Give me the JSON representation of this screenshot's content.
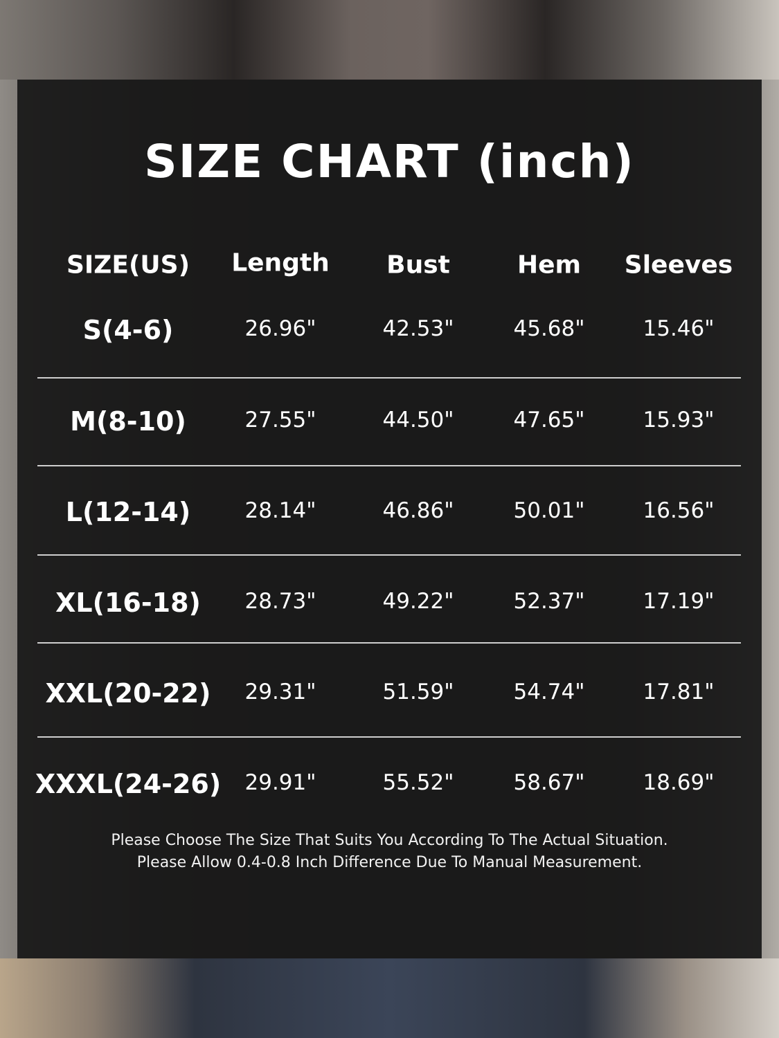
{
  "title": "SIZE CHART (inch)",
  "table": {
    "headers": [
      "SIZE(US)",
      "Length",
      "Bust",
      "Hem",
      "Sleeves"
    ],
    "rows": [
      [
        "S(4-6)",
        "26.96\"",
        "42.53\"",
        "45.68\"",
        "15.46\""
      ],
      [
        "M(8-10)",
        "27.55\"",
        "44.50\"",
        "47.65\"",
        "15.93\""
      ],
      [
        "L(12-14)",
        "28.14\"",
        "46.86\"",
        "50.01\"",
        "16.56\""
      ],
      [
        "XL(16-18)",
        "28.73\"",
        "49.22\"",
        "52.37\"",
        "17.19\""
      ],
      [
        "XXL(20-22)",
        "29.31\"",
        "51.59\"",
        "54.74\"",
        "17.81\""
      ],
      [
        "XXXL(24-26)",
        "29.91\"",
        "55.52\"",
        "58.67\"",
        "18.69\""
      ]
    ]
  },
  "notes": [
    "Please Choose The Size That Suits You According To The Actual Situation.",
    "Please Allow 0.4-0.8 Inch Difference Due To Manual Measurement."
  ]
}
